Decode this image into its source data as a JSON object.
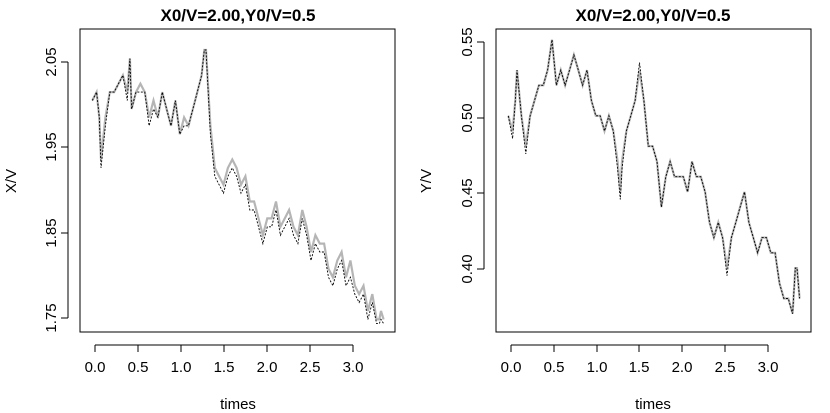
{
  "chart_data": [
    {
      "type": "line",
      "title": "X0/V=2.00,Y0/V=0.5",
      "xlabel": "times",
      "ylabel": "X/V",
      "xlim": [
        -0.14,
        3.46
      ],
      "ylim": [
        1.735,
        2.095
      ],
      "xticks": [
        "0.0",
        "0.5",
        "1.0",
        "1.5",
        "2.0",
        "2.5",
        "3.0"
      ],
      "yticks": [
        "1.75",
        "1.85",
        "1.95",
        "2.05"
      ],
      "grid": false,
      "legend": "none",
      "colors": {
        "grey": "#b5b5b5",
        "black": "#000000"
      },
      "series": [
        {
          "x": [
            0.0,
            0.05,
            0.08,
            0.1,
            0.15,
            0.2,
            0.25,
            0.3,
            0.35,
            0.4,
            0.43,
            0.45,
            0.5,
            0.55,
            0.6,
            0.65,
            0.7,
            0.75,
            0.8,
            0.85,
            0.9,
            0.95,
            1.0,
            1.05,
            1.1,
            1.15,
            1.2,
            1.25,
            1.28,
            1.3,
            1.35,
            1.4,
            1.45,
            1.5,
            1.55,
            1.6,
            1.65,
            1.7,
            1.75,
            1.8,
            1.85,
            1.9,
            1.95,
            2.0,
            2.05,
            2.1,
            2.15,
            2.2,
            2.25,
            2.3,
            2.35,
            2.4,
            2.45,
            2.5,
            2.55,
            2.6,
            2.65,
            2.7,
            2.75,
            2.8,
            2.85,
            2.9,
            2.95,
            3.0,
            3.05,
            3.1,
            3.15,
            3.2,
            3.25,
            3.28,
            3.3,
            3.33
          ],
          "values": [
            2.01,
            2.02,
            1.99,
            1.94,
            1.99,
            2.02,
            2.02,
            2.03,
            2.04,
            2.02,
            2.06,
            2.0,
            2.02,
            2.03,
            2.02,
            1.99,
            2.01,
            1.99,
            2.02,
            2.0,
            1.98,
            2.01,
            1.97,
            1.99,
            1.98,
            2.0,
            2.02,
            2.04,
            2.07,
            2.07,
            1.98,
            1.93,
            1.92,
            1.91,
            1.93,
            1.94,
            1.93,
            1.91,
            1.92,
            1.89,
            1.89,
            1.87,
            1.85,
            1.87,
            1.87,
            1.89,
            1.86,
            1.87,
            1.88,
            1.86,
            1.85,
            1.88,
            1.86,
            1.83,
            1.85,
            1.84,
            1.84,
            1.81,
            1.8,
            1.82,
            1.83,
            1.8,
            1.82,
            1.79,
            1.78,
            1.79,
            1.76,
            1.78,
            1.75,
            1.75,
            1.76,
            1.75
          ]
        },
        {
          "x": [
            0.0,
            0.05,
            0.08,
            0.1,
            0.15,
            0.2,
            0.25,
            0.3,
            0.35,
            0.4,
            0.43,
            0.45,
            0.5,
            0.55,
            0.6,
            0.65,
            0.7,
            0.75,
            0.8,
            0.85,
            0.9,
            0.95,
            1.0,
            1.05,
            1.1,
            1.15,
            1.2,
            1.25,
            1.28,
            1.3,
            1.35,
            1.4,
            1.45,
            1.5,
            1.55,
            1.6,
            1.65,
            1.7,
            1.75,
            1.8,
            1.85,
            1.9,
            1.95,
            2.0,
            2.05,
            2.1,
            2.15,
            2.2,
            2.25,
            2.3,
            2.35,
            2.4,
            2.45,
            2.5,
            2.55,
            2.6,
            2.65,
            2.7,
            2.75,
            2.8,
            2.85,
            2.9,
            2.95,
            3.0,
            3.05,
            3.1,
            3.15,
            3.2,
            3.25,
            3.28,
            3.3,
            3.33
          ],
          "values": [
            2.01,
            2.02,
            1.99,
            1.93,
            1.98,
            2.02,
            2.02,
            2.03,
            2.04,
            2.01,
            2.06,
            2.0,
            2.02,
            2.02,
            2.02,
            1.98,
            2.0,
            1.99,
            2.02,
            2.0,
            1.98,
            2.01,
            1.97,
            1.98,
            1.98,
            2.0,
            2.02,
            2.04,
            2.07,
            2.07,
            1.97,
            1.92,
            1.91,
            1.9,
            1.92,
            1.93,
            1.92,
            1.9,
            1.91,
            1.88,
            1.88,
            1.86,
            1.84,
            1.86,
            1.86,
            1.88,
            1.85,
            1.86,
            1.87,
            1.85,
            1.84,
            1.87,
            1.85,
            1.82,
            1.84,
            1.83,
            1.83,
            1.8,
            1.79,
            1.81,
            1.82,
            1.79,
            1.8,
            1.78,
            1.77,
            1.78,
            1.75,
            1.77,
            1.745,
            1.745,
            1.75,
            1.745
          ]
        }
      ]
    },
    {
      "type": "line",
      "title": "X0/V=2.00,Y0/V=0.5",
      "xlabel": "times",
      "ylabel": "Y/V",
      "xlim": [
        -0.14,
        3.46
      ],
      "ylim": [
        0.358,
        0.557
      ],
      "xticks": [
        "0.0",
        "0.5",
        "1.0",
        "1.5",
        "2.0",
        "2.5",
        "3.0"
      ],
      "yticks": [
        "0.40",
        "0.45",
        "0.50",
        "0.55"
      ],
      "grid": false,
      "legend": "none",
      "colors": {
        "grey": "#b5b5b5",
        "black": "#000000"
      },
      "series": [
        {
          "x": [
            0.0,
            0.05,
            0.08,
            0.1,
            0.15,
            0.2,
            0.25,
            0.3,
            0.35,
            0.4,
            0.45,
            0.5,
            0.55,
            0.6,
            0.65,
            0.7,
            0.75,
            0.8,
            0.85,
            0.9,
            0.95,
            1.0,
            1.05,
            1.1,
            1.15,
            1.2,
            1.25,
            1.28,
            1.3,
            1.35,
            1.4,
            1.45,
            1.5,
            1.55,
            1.6,
            1.65,
            1.7,
            1.75,
            1.8,
            1.85,
            1.9,
            1.95,
            2.0,
            2.05,
            2.1,
            2.15,
            2.2,
            2.25,
            2.3,
            2.35,
            2.4,
            2.45,
            2.5,
            2.55,
            2.6,
            2.65,
            2.7,
            2.75,
            2.8,
            2.85,
            2.9,
            2.95,
            3.0,
            3.05,
            3.1,
            3.15,
            3.2,
            3.25,
            3.28,
            3.3,
            3.33
          ],
          "values": [
            0.5,
            0.49,
            0.51,
            0.53,
            0.5,
            0.48,
            0.5,
            0.51,
            0.52,
            0.52,
            0.53,
            0.55,
            0.52,
            0.53,
            0.52,
            0.53,
            0.54,
            0.53,
            0.52,
            0.53,
            0.51,
            0.5,
            0.5,
            0.49,
            0.5,
            0.49,
            0.47,
            0.45,
            0.47,
            0.49,
            0.5,
            0.51,
            0.53,
            0.51,
            0.48,
            0.48,
            0.47,
            0.44,
            0.46,
            0.47,
            0.46,
            0.46,
            0.46,
            0.45,
            0.47,
            0.46,
            0.46,
            0.45,
            0.43,
            0.42,
            0.43,
            0.42,
            0.4,
            0.42,
            0.43,
            0.44,
            0.45,
            0.43,
            0.42,
            0.41,
            0.42,
            0.42,
            0.41,
            0.41,
            0.39,
            0.38,
            0.38,
            0.37,
            0.4,
            0.4,
            0.38
          ]
        },
        {
          "x": [
            0.0,
            0.05,
            0.08,
            0.1,
            0.15,
            0.2,
            0.25,
            0.3,
            0.35,
            0.4,
            0.45,
            0.5,
            0.55,
            0.6,
            0.65,
            0.7,
            0.75,
            0.8,
            0.85,
            0.9,
            0.95,
            1.0,
            1.05,
            1.1,
            1.15,
            1.2,
            1.25,
            1.28,
            1.3,
            1.35,
            1.4,
            1.45,
            1.5,
            1.55,
            1.6,
            1.65,
            1.7,
            1.75,
            1.8,
            1.85,
            1.9,
            1.95,
            2.0,
            2.05,
            2.1,
            2.15,
            2.2,
            2.25,
            2.3,
            2.35,
            2.4,
            2.45,
            2.5,
            2.55,
            2.6,
            2.65,
            2.7,
            2.75,
            2.8,
            2.85,
            2.9,
            2.95,
            3.0,
            3.05,
            3.1,
            3.15,
            3.2,
            3.25,
            3.28,
            3.3,
            3.33
          ],
          "values": [
            0.5,
            0.485,
            0.51,
            0.53,
            0.5,
            0.475,
            0.5,
            0.51,
            0.52,
            0.52,
            0.53,
            0.55,
            0.52,
            0.53,
            0.52,
            0.53,
            0.54,
            0.53,
            0.52,
            0.53,
            0.51,
            0.5,
            0.5,
            0.49,
            0.5,
            0.49,
            0.465,
            0.445,
            0.465,
            0.49,
            0.5,
            0.51,
            0.535,
            0.51,
            0.48,
            0.48,
            0.47,
            0.44,
            0.46,
            0.47,
            0.46,
            0.46,
            0.46,
            0.45,
            0.47,
            0.46,
            0.46,
            0.45,
            0.43,
            0.42,
            0.43,
            0.42,
            0.395,
            0.42,
            0.43,
            0.44,
            0.45,
            0.43,
            0.42,
            0.41,
            0.42,
            0.42,
            0.41,
            0.41,
            0.39,
            0.38,
            0.38,
            0.37,
            0.4,
            0.4,
            0.38
          ]
        }
      ]
    }
  ]
}
